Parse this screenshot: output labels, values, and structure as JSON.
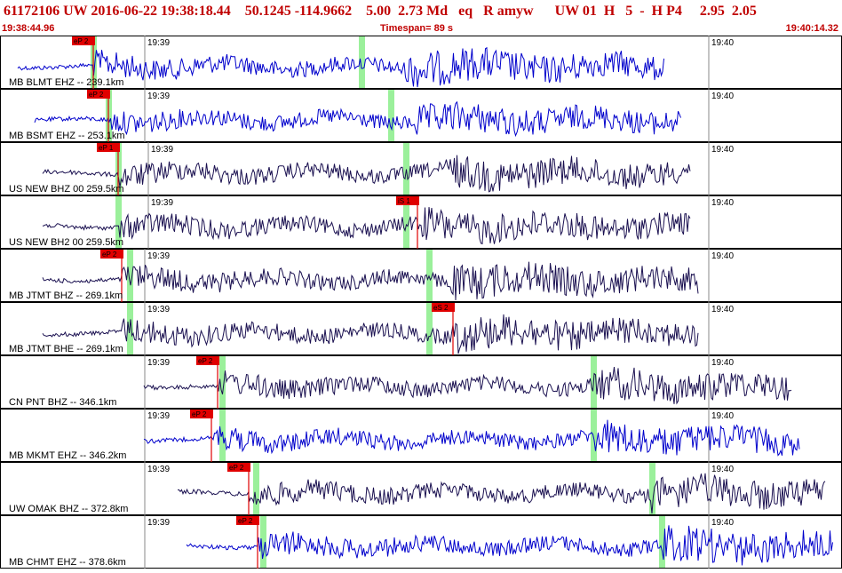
{
  "header": {
    "title": "61172106 UW 2016-06-22 19:38:18.44    50.1245 -114.9662    5.00  2.73 Md   eq   R amyw      UW 01  H   5  -  H P4     2.95  2.05",
    "start_time": "19:38:44.96",
    "timespan": "Timespan=  89 s",
    "end_time": "19:40:14.32"
  },
  "time_marks": [
    "19:39",
    "19:40"
  ],
  "colors": {
    "trace_blue": "#0000cc",
    "trace_navy": "#1a1050",
    "pick": "#e00000",
    "window": "#90ee90",
    "header": "#c00000"
  },
  "channels": [
    {
      "label": "MB BLMT EHZ -- 239.1km",
      "color": "blue",
      "p_pick": "eP 2",
      "p_label_visible": true,
      "s_pick": "",
      "amp": 0.85,
      "start_frac": 0.0,
      "end_frac": 0.8
    },
    {
      "label": "MB BSMT EHZ -- 253.1km",
      "color": "blue",
      "p_pick": "eP 2",
      "p_label_visible": true,
      "s_pick": "",
      "amp": 0.6,
      "start_frac": 0.02,
      "end_frac": 0.82
    },
    {
      "label": "US NEW BHZ 00 259.5km",
      "color": "navy",
      "p_pick": "eP 1",
      "p_label_visible": true,
      "s_pick": "",
      "amp": 0.7,
      "start_frac": 0.03,
      "end_frac": 0.83
    },
    {
      "label": "US NEW BH2 00 259.5km",
      "color": "navy",
      "p_pick": "",
      "p_label_visible": false,
      "s_pick": "iS 1",
      "amp": 0.7,
      "start_frac": 0.03,
      "end_frac": 0.83
    },
    {
      "label": "MB JTMT BHZ -- 269.1km",
      "color": "navy",
      "p_pick": "eP 2",
      "p_label_visible": true,
      "s_pick": "",
      "amp": 0.8,
      "start_frac": 0.03,
      "end_frac": 0.84
    },
    {
      "label": "MB JTMT BHE -- 269.1km",
      "color": "navy",
      "p_pick": "",
      "p_label_visible": false,
      "s_pick": "eS 2",
      "amp": 0.8,
      "start_frac": 0.03,
      "end_frac": 0.84
    },
    {
      "label": "CN PNT BHZ -- 346.1km",
      "color": "navy",
      "p_pick": "eP 2",
      "p_label_visible": true,
      "s_pick": "",
      "amp": 0.75,
      "start_frac": 0.15,
      "end_frac": 0.95
    },
    {
      "label": "MB MKMT EHZ -- 346.2km",
      "color": "blue",
      "p_pick": "eP 2",
      "p_label_visible": true,
      "s_pick": "",
      "amp": 0.7,
      "start_frac": 0.15,
      "end_frac": 0.96
    },
    {
      "label": "UW OMAK BHZ -- 372.8km",
      "color": "navy",
      "p_pick": "eP 2",
      "p_label_visible": true,
      "s_pick": "",
      "amp": 0.75,
      "start_frac": 0.19,
      "end_frac": 0.99
    },
    {
      "label": "MB CHMT EHZ -- 378.6km",
      "color": "blue",
      "p_pick": "eP 2",
      "p_label_visible": true,
      "s_pick": "",
      "amp": 0.85,
      "start_frac": 0.2,
      "end_frac": 1.0
    }
  ]
}
